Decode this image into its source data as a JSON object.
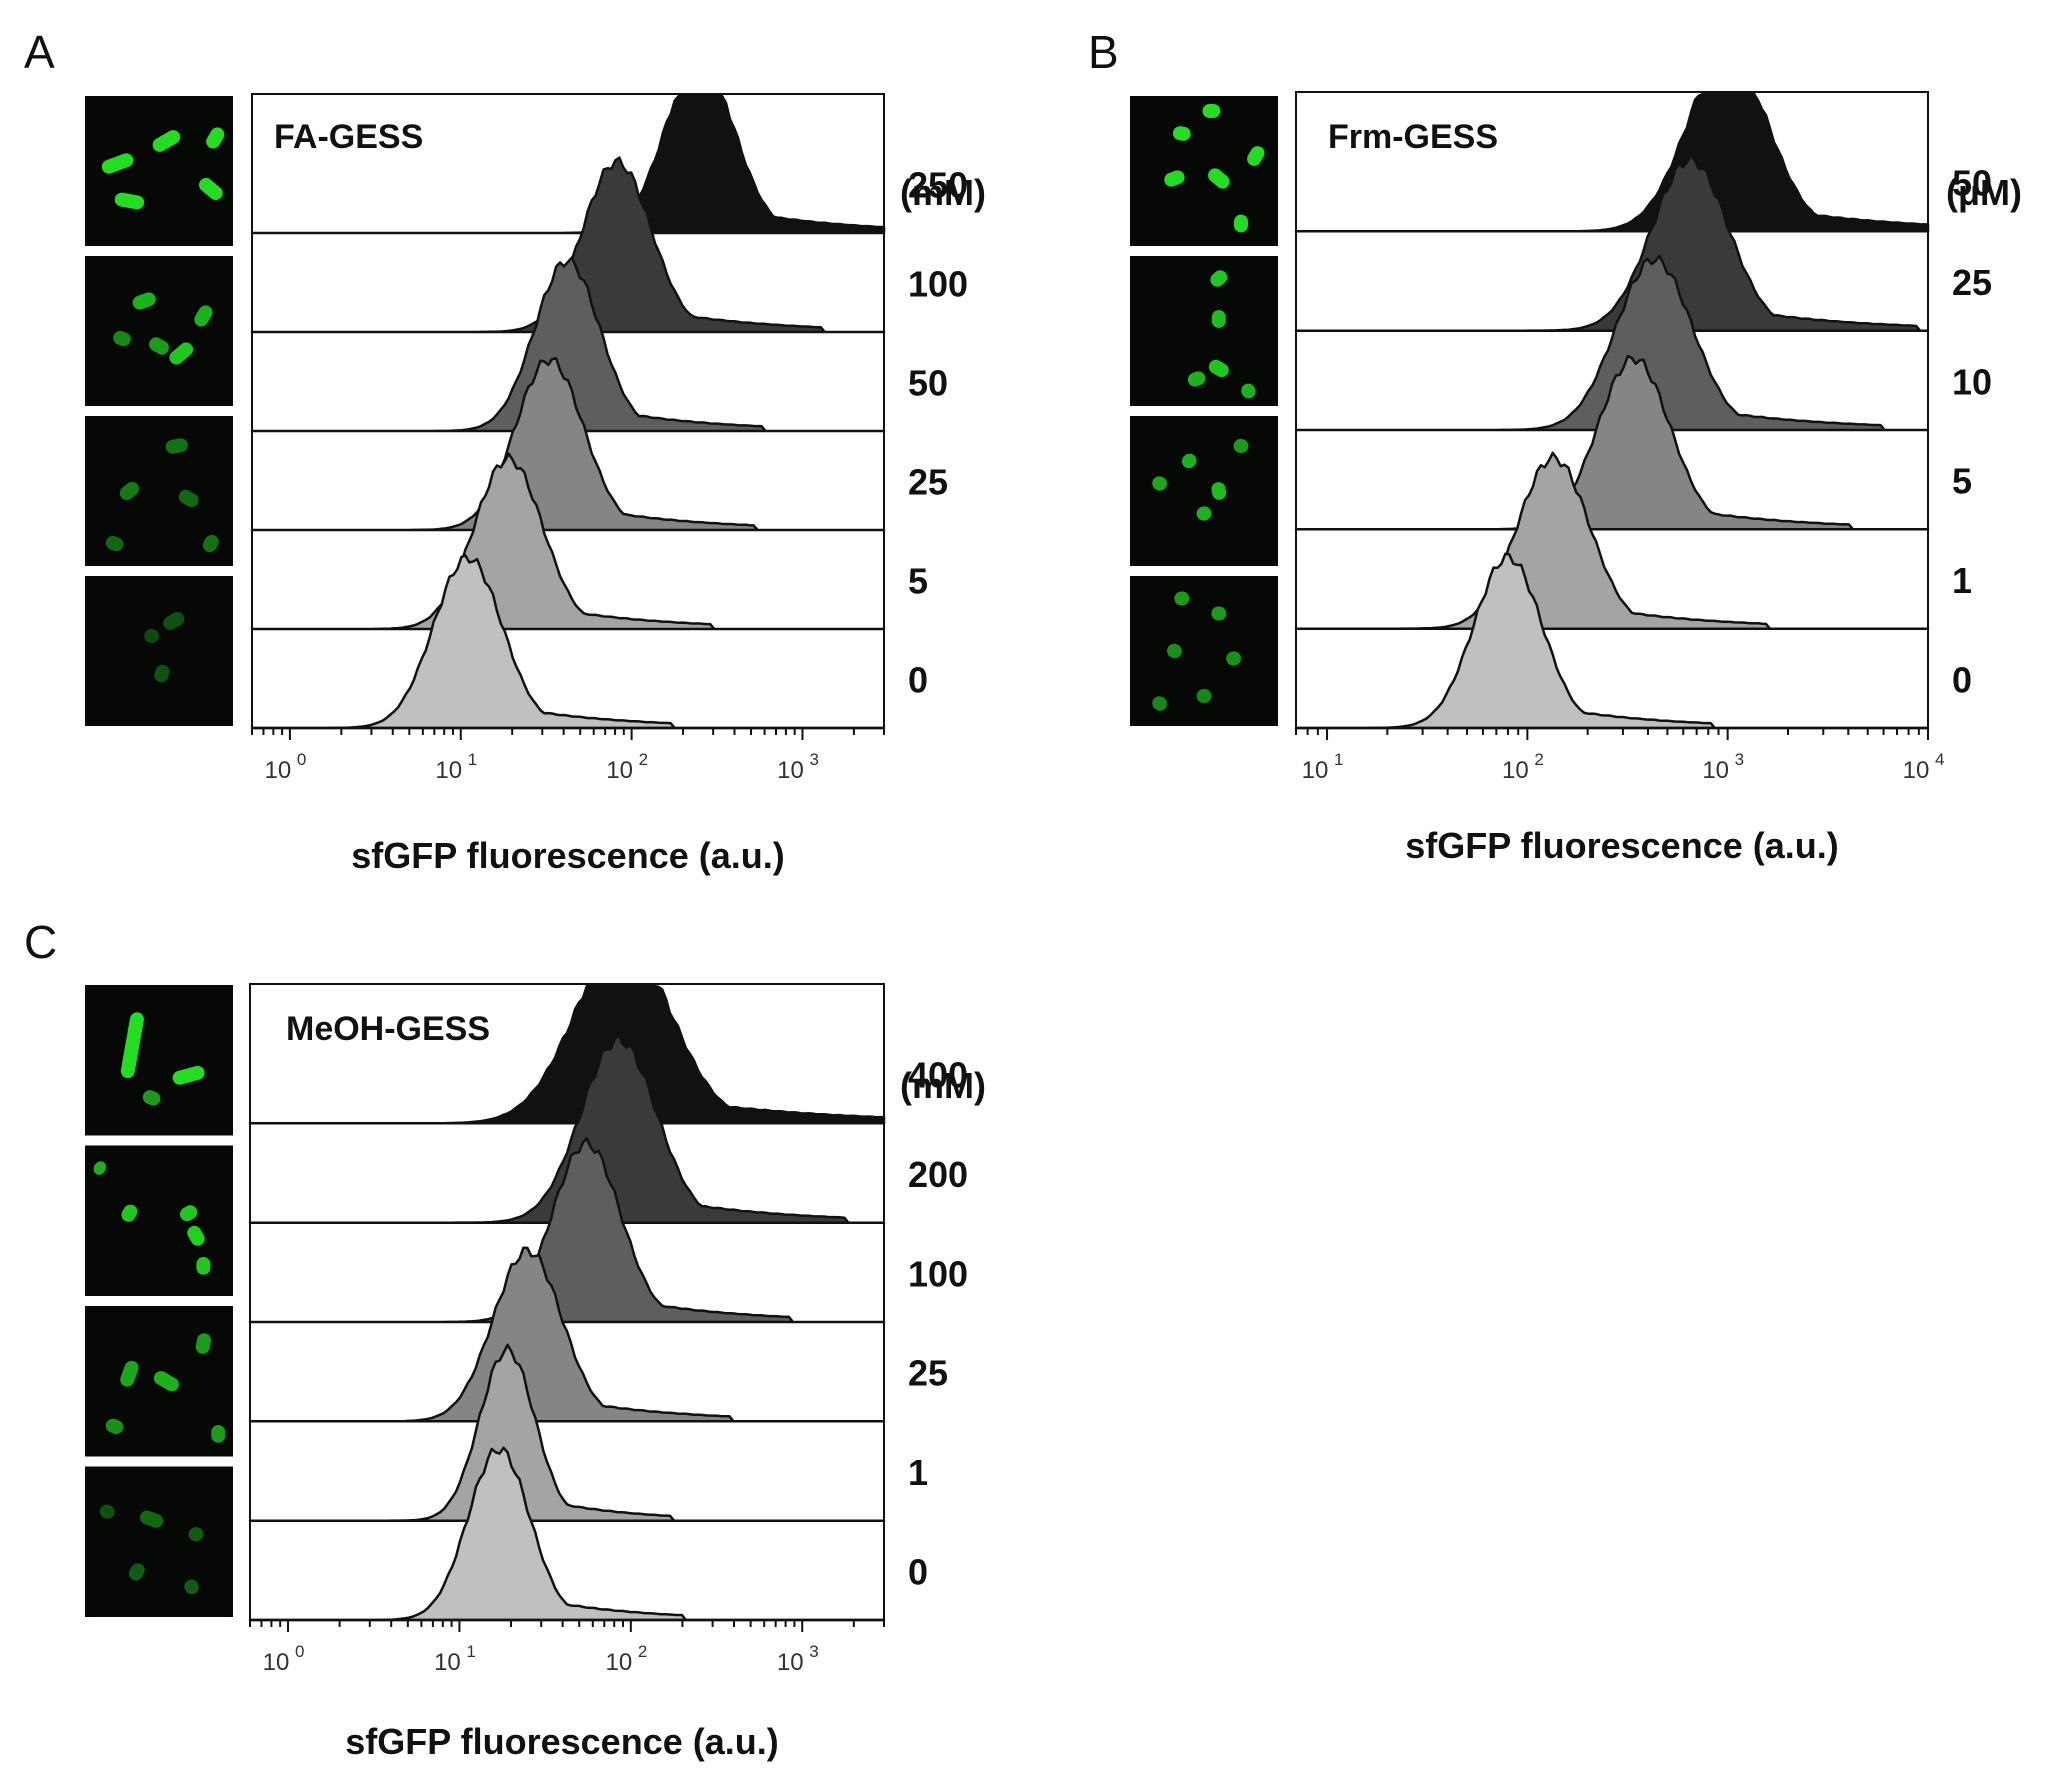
{
  "colors": {
    "shades": [
      "#c0c0c0",
      "#a4a4a4",
      "#858585",
      "#5e5e5e",
      "#3a3a3a",
      "#111111"
    ],
    "micro_bg": "#050805",
    "micro_cell": "#22dd22"
  },
  "chart_data": [
    {
      "type": "area",
      "panel": "A",
      "title": "FA-GESS",
      "unit": "(mM)",
      "xlabel": "sfGFP  fluorescence (a.u.)",
      "xscale": "log",
      "xlim": [
        0.6,
        3000
      ],
      "x_ticks": [
        {
          "base": "10",
          "exp": "0",
          "value": 1
        },
        {
          "base": "10",
          "exp": "1",
          "value": 10
        },
        {
          "base": "10",
          "exp": "2",
          "value": 100
        },
        {
          "base": "10",
          "exp": "3",
          "value": 1000
        }
      ],
      "series": [
        {
          "name": "250",
          "peak": 250,
          "sigma": 0.2,
          "height": 0.88
        },
        {
          "name": "100",
          "peak": 82,
          "sigma": 0.2,
          "height": 0.86
        },
        {
          "name": "50",
          "peak": 42,
          "sigma": 0.19,
          "height": 0.86
        },
        {
          "name": "25",
          "peak": 33,
          "sigma": 0.2,
          "height": 0.86
        },
        {
          "name": "5",
          "peak": 19,
          "sigma": 0.2,
          "height": 0.86
        },
        {
          "name": "0",
          "peak": 11,
          "sigma": 0.2,
          "height": 0.86
        }
      ]
    },
    {
      "type": "area",
      "panel": "B",
      "title": "Frm-GESS",
      "unit": "(μM)",
      "xlabel": "sfGFP  fluorescence (a.u.)",
      "xscale": "log",
      "xlim": [
        7,
        10000
      ],
      "x_ticks": [
        {
          "base": "10",
          "exp": "1",
          "value": 10
        },
        {
          "base": "10",
          "exp": "2",
          "value": 100
        },
        {
          "base": "10",
          "exp": "3",
          "value": 1000
        },
        {
          "base": "10",
          "exp": "4",
          "value": 10000
        }
      ],
      "series": [
        {
          "name": "50",
          "peak": 1000,
          "sigma": 0.2,
          "height": 0.9
        },
        {
          "name": "25",
          "peak": 650,
          "sigma": 0.19,
          "height": 0.86
        },
        {
          "name": "10",
          "peak": 430,
          "sigma": 0.19,
          "height": 0.86
        },
        {
          "name": "5",
          "peak": 340,
          "sigma": 0.18,
          "height": 0.86
        },
        {
          "name": "1",
          "peak": 135,
          "sigma": 0.18,
          "height": 0.86
        },
        {
          "name": "0",
          "peak": 80,
          "sigma": 0.17,
          "height": 0.86
        }
      ]
    },
    {
      "type": "area",
      "panel": "C",
      "title": "MeOH-GESS",
      "unit": "(mM)",
      "xlabel": "sfGFP  fluorescence (a.u.)",
      "xscale": "log",
      "xlim": [
        0.6,
        3000
      ],
      "x_ticks": [
        {
          "base": "10",
          "exp": "0",
          "value": 1
        },
        {
          "base": "10",
          "exp": "1",
          "value": 10
        },
        {
          "base": "10",
          "exp": "2",
          "value": 100
        },
        {
          "base": "10",
          "exp": "3",
          "value": 1000
        }
      ],
      "series": [
        {
          "name": "400",
          "peak": 90,
          "sigma": 0.28,
          "height": 0.92
        },
        {
          "name": "200",
          "peak": 85,
          "sigma": 0.22,
          "height": 0.92
        },
        {
          "name": "100",
          "peak": 55,
          "sigma": 0.2,
          "height": 0.9
        },
        {
          "name": "25",
          "peak": 25,
          "sigma": 0.2,
          "height": 0.86
        },
        {
          "name": "1",
          "peak": 19,
          "sigma": 0.16,
          "height": 0.86
        },
        {
          "name": "0",
          "peak": 17,
          "sigma": 0.18,
          "height": 0.86
        }
      ]
    }
  ]
}
